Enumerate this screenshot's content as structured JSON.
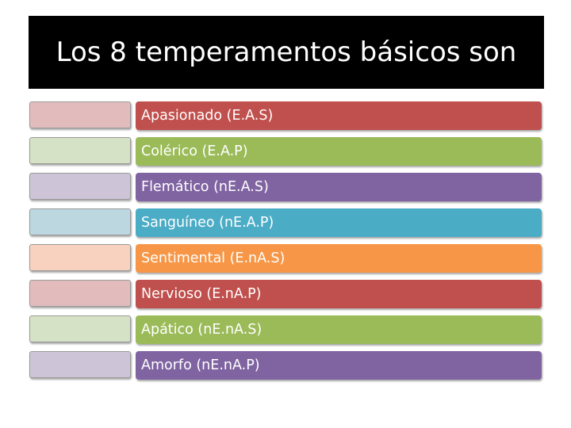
{
  "slide": {
    "title": "Los 8 temperamentos básicos son"
  },
  "items": [
    {
      "label": "Apasionado (E.A.S)",
      "bar_color": "#c0504d",
      "swatch_color": "#e2bcbd"
    },
    {
      "label": "Colérico (E.A.P)",
      "bar_color": "#9bbb59",
      "swatch_color": "#d6e2c6"
    },
    {
      "label": "Flemático (nE.A.S)",
      "bar_color": "#8064a2",
      "swatch_color": "#cdc4d7"
    },
    {
      "label": "Sanguíneo (nE.A.P)",
      "bar_color": "#4bacc6",
      "swatch_color": "#bcd7e0"
    },
    {
      "label": "Sentimental (E.nA.S)",
      "bar_color": "#f79646",
      "swatch_color": "#f8d2be"
    },
    {
      "label": "Nervioso (E.nA.P)",
      "bar_color": "#c0504d",
      "swatch_color": "#e2bcbd"
    },
    {
      "label": "Apático (nE.nA.S)",
      "bar_color": "#9bbb59",
      "swatch_color": "#d6e2c6"
    },
    {
      "label": "Amorfo (nE.nA.P)",
      "bar_color": "#8064a2",
      "swatch_color": "#cdc4d7"
    }
  ]
}
